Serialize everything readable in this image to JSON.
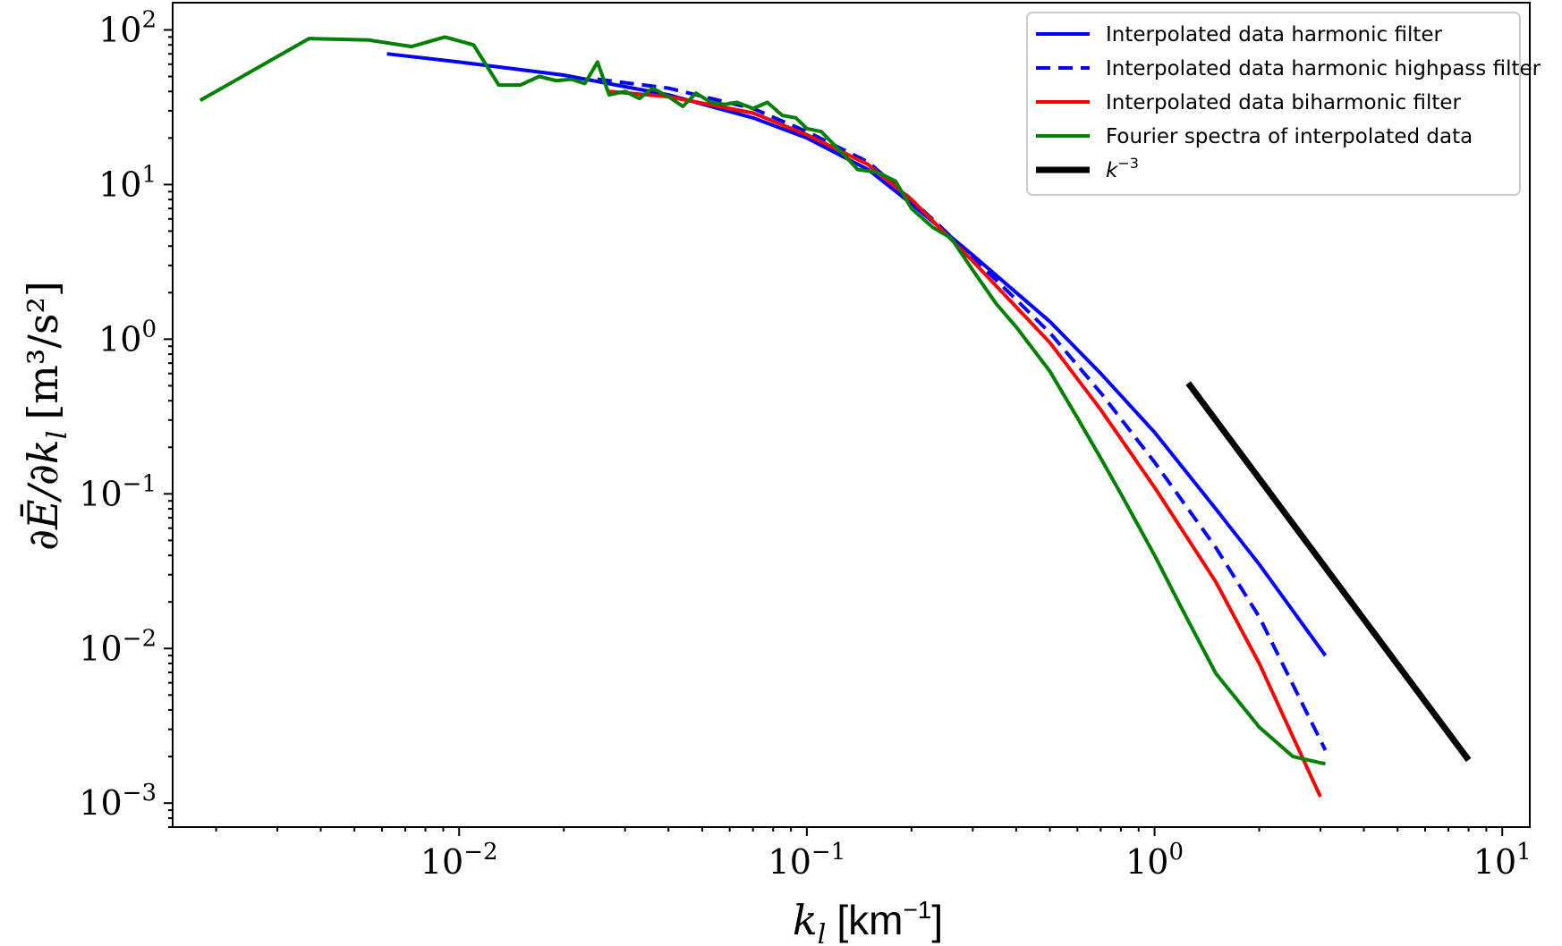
{
  "chart_data": {
    "type": "line",
    "xscale": "log",
    "yscale": "log",
    "xlim": [
      0.0015,
      12
    ],
    "ylim": [
      0.0007,
      150
    ],
    "xlabel": "k_l [km^-1]",
    "ylabel": "∂Ē/∂k_l [m³/s²]",
    "xlabel_parts": {
      "main": "k",
      "sub": "l",
      "unit": "[km",
      "exp": "−1",
      "close": "]"
    },
    "ylabel_text": "∂Ē/∂k",
    "ylabel_sub": "l",
    "ylabel_unit": "[m³/s²]",
    "x_ticks": [
      {
        "value": 0.01,
        "base": "10",
        "exp": "−2"
      },
      {
        "value": 0.1,
        "base": "10",
        "exp": "−1"
      },
      {
        "value": 1,
        "base": "10",
        "exp": "0"
      },
      {
        "value": 10,
        "base": "10",
        "exp": "1"
      }
    ],
    "y_ticks": [
      {
        "value": 0.001,
        "base": "10",
        "exp": "−3"
      },
      {
        "value": 0.01,
        "base": "10",
        "exp": "−2"
      },
      {
        "value": 0.1,
        "base": "10",
        "exp": "−1"
      },
      {
        "value": 1,
        "base": "10",
        "exp": "0"
      },
      {
        "value": 10,
        "base": "10",
        "exp": "1"
      },
      {
        "value": 100,
        "base": "10",
        "exp": "2"
      }
    ],
    "legend_position": "top-right",
    "grid": false,
    "series": [
      {
        "name": "Interpolated data harmonic filter",
        "color": "#0000ff",
        "style": "solid",
        "x": [
          0.0062,
          0.01,
          0.02,
          0.04,
          0.07,
          0.1,
          0.15,
          0.2,
          0.3,
          0.5,
          0.7,
          1.0,
          1.5,
          2.0,
          3.1
        ],
        "y": [
          70,
          62,
          51,
          38,
          27,
          20,
          12.5,
          7.5,
          3.5,
          1.3,
          0.6,
          0.25,
          0.08,
          0.035,
          0.009
        ]
      },
      {
        "name": "Interpolated data harmonic highpass filter",
        "color": "#0000ff",
        "style": "dashed",
        "x": [
          0.025,
          0.04,
          0.07,
          0.1,
          0.15,
          0.2,
          0.3,
          0.5,
          0.7,
          1.0,
          1.5,
          2.0,
          3.1
        ],
        "y": [
          48,
          42,
          31,
          22,
          14,
          8,
          3.4,
          1.1,
          0.45,
          0.16,
          0.045,
          0.016,
          0.0022
        ]
      },
      {
        "name": "Interpolated data biharmonic filter",
        "color": "#ff0000",
        "style": "solid",
        "x": [
          0.027,
          0.04,
          0.07,
          0.1,
          0.15,
          0.2,
          0.3,
          0.5,
          0.7,
          1.0,
          1.5,
          2.0,
          3.0
        ],
        "y": [
          40,
          37,
          29,
          21,
          13.5,
          8,
          3.2,
          0.95,
          0.35,
          0.11,
          0.027,
          0.008,
          0.0011
        ]
      },
      {
        "name": "Fourier spectra of interpolated data",
        "color": "#008000",
        "style": "solid",
        "x": [
          0.0018,
          0.0037,
          0.0055,
          0.0073,
          0.0091,
          0.011,
          0.013,
          0.015,
          0.017,
          0.019,
          0.021,
          0.023,
          0.025,
          0.027,
          0.03,
          0.033,
          0.036,
          0.04,
          0.044,
          0.048,
          0.053,
          0.058,
          0.063,
          0.07,
          0.077,
          0.085,
          0.093,
          0.1,
          0.11,
          0.12,
          0.13,
          0.14,
          0.16,
          0.18,
          0.2,
          0.23,
          0.26,
          0.3,
          0.35,
          0.4,
          0.5,
          0.6,
          0.7,
          0.8,
          1.0,
          1.2,
          1.5,
          2.0,
          2.5,
          3.0,
          3.1
        ],
        "y": [
          35,
          88,
          86,
          78,
          90,
          80,
          44,
          44,
          50,
          47,
          48,
          45,
          62,
          38,
          40,
          36,
          42,
          37,
          32,
          39,
          34,
          33,
          34,
          31,
          34,
          28,
          27,
          23,
          22,
          18,
          15,
          12.5,
          12,
          10.5,
          7,
          5.3,
          4.5,
          2.8,
          1.7,
          1.2,
          0.62,
          0.31,
          0.17,
          0.1,
          0.04,
          0.018,
          0.0069,
          0.0031,
          0.002,
          0.00182,
          0.0018
        ]
      },
      {
        "name": "k^-3",
        "legend_label": "k",
        "legend_exp": "−3",
        "color": "#000000",
        "style": "solid",
        "width": "thick",
        "x": [
          1.25,
          8.0
        ],
        "y": [
          0.52,
          0.0019
        ]
      }
    ]
  }
}
